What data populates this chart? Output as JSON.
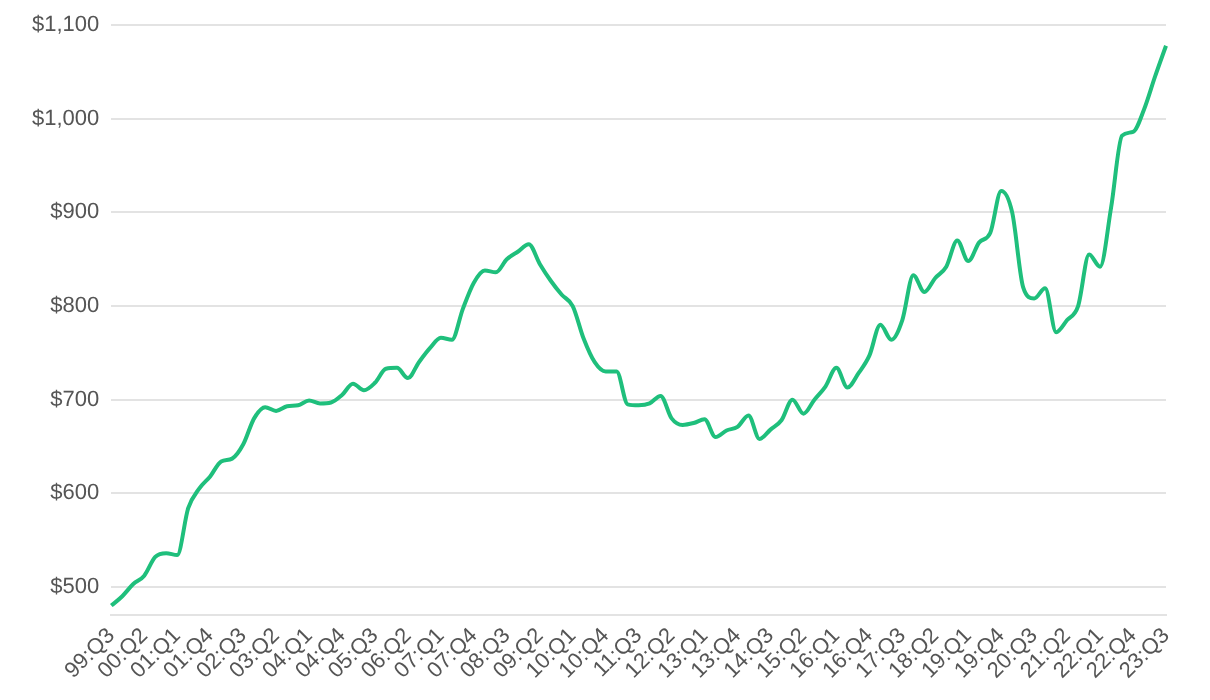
{
  "chart_data": {
    "type": "line",
    "categories": [
      "99:Q3",
      null,
      null,
      "00:Q2",
      null,
      null,
      "01:Q1",
      null,
      null,
      "01:Q4",
      null,
      null,
      "02:Q3",
      null,
      null,
      "03:Q2",
      null,
      null,
      "04:Q1",
      null,
      null,
      "04:Q4",
      null,
      null,
      "05:Q3",
      null,
      null,
      "06:Q2",
      null,
      null,
      "07:Q1",
      null,
      null,
      "07:Q4",
      null,
      null,
      "08:Q3",
      null,
      null,
      "09:Q2",
      null,
      null,
      "10:Q1",
      null,
      null,
      "10:Q4",
      null,
      null,
      "11:Q3",
      null,
      null,
      "12:Q2",
      null,
      null,
      "13:Q1",
      null,
      null,
      "13:Q4",
      null,
      null,
      "14:Q3",
      null,
      null,
      "15:Q2",
      null,
      null,
      "16:Q1",
      null,
      null,
      "16:Q4",
      null,
      null,
      "17:Q3",
      null,
      null,
      "18:Q2",
      null,
      null,
      "19:Q1",
      null,
      null,
      "19:Q4",
      null,
      null,
      "20:Q3",
      null,
      null,
      "21:Q2",
      null,
      null,
      "22:Q1",
      null,
      null,
      "22:Q4",
      null,
      null,
      "23:Q3"
    ],
    "values": [
      480,
      490,
      503,
      512,
      532,
      536,
      534,
      584,
      605,
      618,
      634,
      637,
      652,
      680,
      692,
      688,
      693,
      694,
      699,
      696,
      697,
      705,
      717,
      710,
      718,
      733,
      734,
      723,
      740,
      755,
      766,
      764,
      797,
      825,
      838,
      836,
      850,
      858,
      866,
      845,
      827,
      812,
      800,
      765,
      740,
      730,
      730,
      695,
      694,
      696,
      704,
      680,
      673,
      675,
      679,
      660,
      667,
      671,
      683,
      658,
      668,
      678,
      700,
      685,
      700,
      714,
      734,
      713,
      728,
      747,
      780,
      764,
      785,
      833,
      815,
      830,
      842,
      870,
      848,
      868,
      878,
      923,
      900,
      820,
      808,
      819,
      772,
      785,
      800,
      855,
      842,
      905,
      982,
      986,
      1010,
      1045,
      1078
    ],
    "color": "#1fbf7c",
    "ylim": [
      470,
      1100
    ],
    "yticks": [
      {
        "value": 500,
        "label": "$500"
      },
      {
        "value": 600,
        "label": "$600"
      },
      {
        "value": 700,
        "label": "$700"
      },
      {
        "value": 800,
        "label": "$800"
      },
      {
        "value": 900,
        "label": "$900"
      },
      {
        "value": 1000,
        "label": "$1,000"
      },
      {
        "value": 1100,
        "label": "$1,100"
      }
    ],
    "grid": "y",
    "legend": false,
    "marker": "none",
    "line_style": "solid"
  }
}
